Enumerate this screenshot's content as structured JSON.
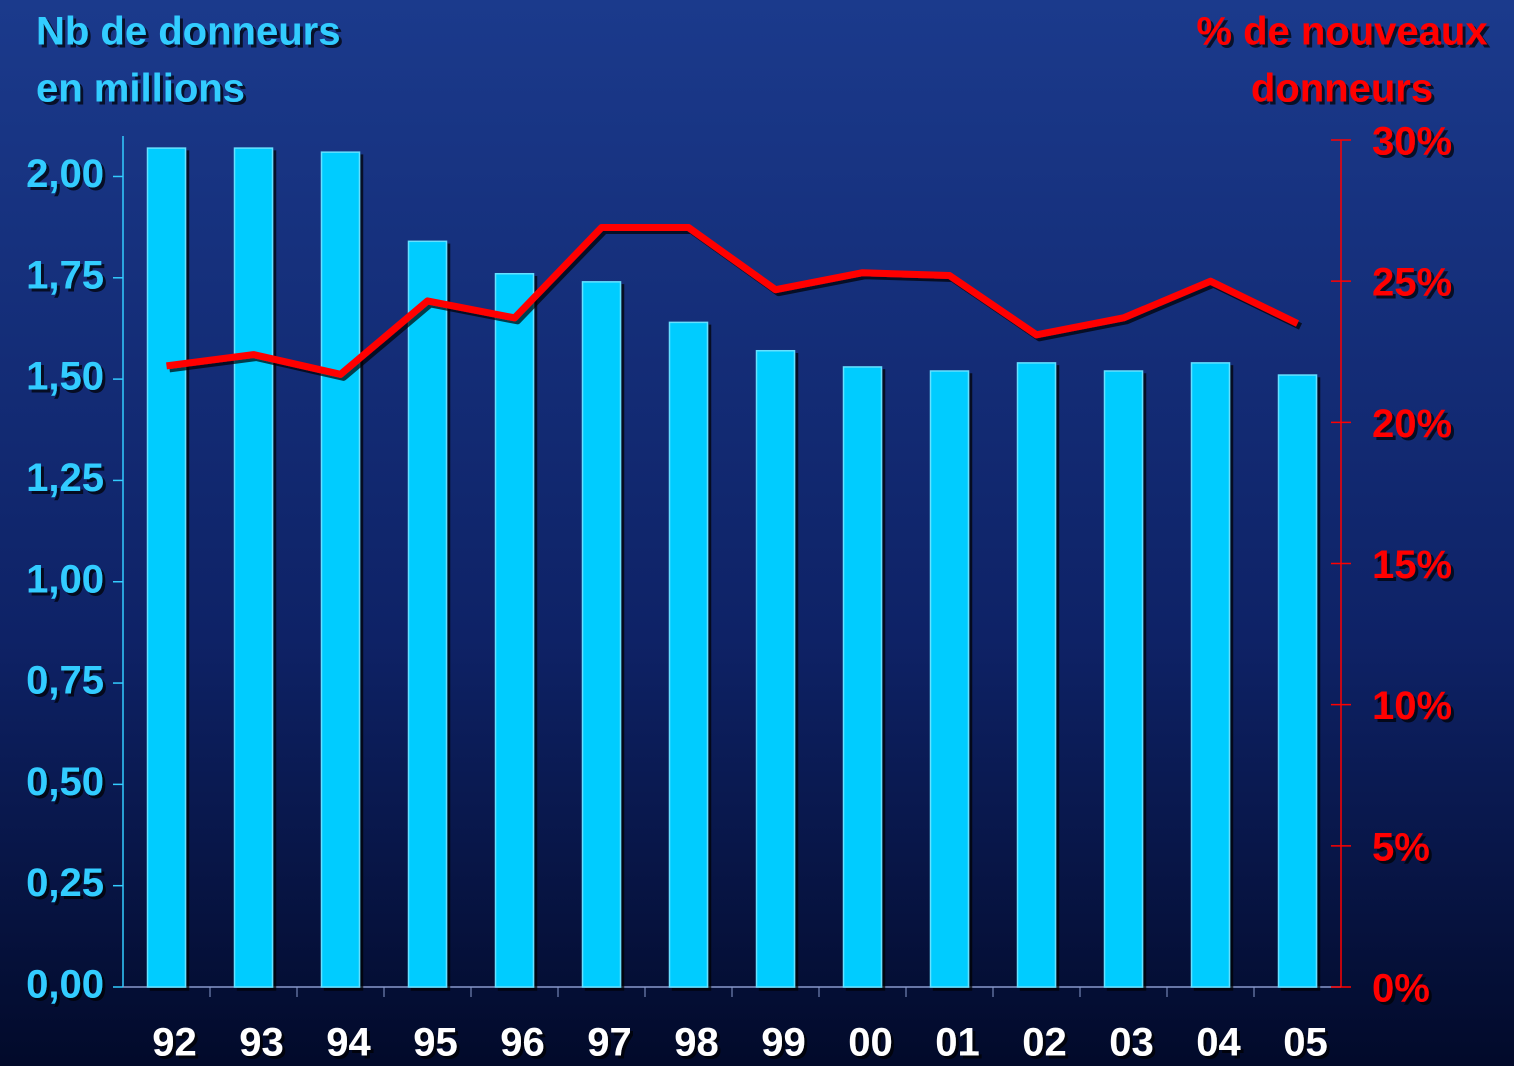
{
  "chart_data": {
    "type": "bar_line",
    "ylabel": [
      "Nb de donneurs",
      "en millions"
    ],
    "y2label": [
      "% de nouveaux",
      "donneurs"
    ],
    "categories": [
      "92",
      "93",
      "94",
      "95",
      "96",
      "97",
      "98",
      "99",
      "00",
      "01",
      "02",
      "03",
      "04",
      "05"
    ],
    "series": [
      {
        "name": "Nb de donneurs",
        "type": "bar",
        "color": "#00ccff",
        "axis": "y",
        "values": [
          2.07,
          2.07,
          2.06,
          1.84,
          1.76,
          1.74,
          1.64,
          1.57,
          1.53,
          1.52,
          1.54,
          1.52,
          1.54,
          1.51
        ]
      },
      {
        "name": "% de nouveaux donneurs",
        "type": "line",
        "color": "#ff0000",
        "axis": "y2",
        "values": [
          22.0,
          22.4,
          21.7,
          24.3,
          23.7,
          26.9,
          26.9,
          24.7,
          25.3,
          25.2,
          23.1,
          23.7,
          25.0,
          23.5
        ]
      }
    ],
    "ylim": [
      0,
      2.09
    ],
    "yticks": [
      {
        "value": 0,
        "label": "0,00"
      },
      {
        "value": 0.25,
        "label": "0,25"
      },
      {
        "value": 0.5,
        "label": "0,50"
      },
      {
        "value": 0.75,
        "label": "0,75"
      },
      {
        "value": 1,
        "label": "1,00"
      },
      {
        "value": 1.25,
        "label": "1,25"
      },
      {
        "value": 1.5,
        "label": "1,50"
      },
      {
        "value": 1.75,
        "label": "1,75"
      },
      {
        "value": 2,
        "label": "2,00"
      }
    ],
    "y2lim": [
      0,
      30
    ],
    "y2ticks": [
      {
        "value": 0,
        "label": "0%"
      },
      {
        "value": 5,
        "label": "5%"
      },
      {
        "value": 10,
        "label": "10%"
      },
      {
        "value": 15,
        "label": "15%"
      },
      {
        "value": 20,
        "label": "20%"
      },
      {
        "value": 25,
        "label": "25%"
      },
      {
        "value": 30,
        "label": "30%"
      }
    ],
    "ycolor": "#33ccff",
    "y2color": "#ff0000"
  }
}
